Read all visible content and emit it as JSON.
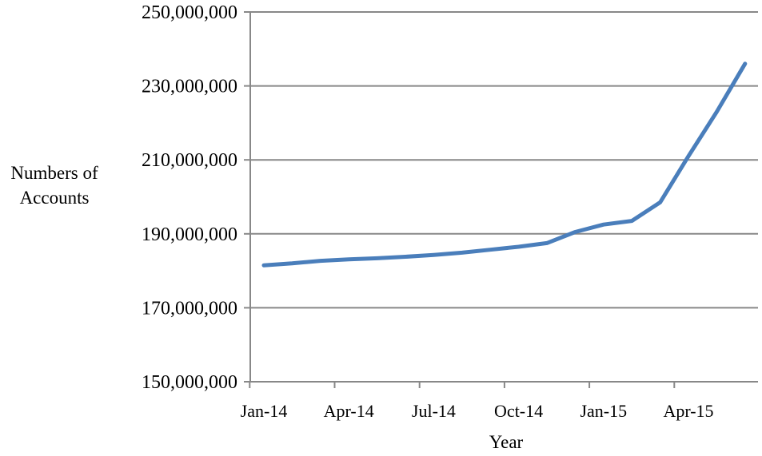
{
  "chart_data": {
    "type": "line",
    "title": "",
    "xlabel": "Year",
    "ylabel": [
      "Numbers of",
      "Accounts"
    ],
    "ylim": [
      150000000,
      250000000
    ],
    "yticks": [
      {
        "value": 150000000,
        "label": "150,000,000"
      },
      {
        "value": 170000000,
        "label": "170,000,000"
      },
      {
        "value": 190000000,
        "label": "190,000,000"
      },
      {
        "value": 210000000,
        "label": "210,000,000"
      },
      {
        "value": 230000000,
        "label": "230,000,000"
      },
      {
        "value": 250000000,
        "label": "250,000,000"
      }
    ],
    "xticks": [
      {
        "x": "2014-01",
        "label": "Jan-14"
      },
      {
        "x": "2014-04",
        "label": "Apr-14"
      },
      {
        "x": "2014-07",
        "label": "Jul-14"
      },
      {
        "x": "2014-10",
        "label": "Oct-14"
      },
      {
        "x": "2015-01",
        "label": "Jan-15"
      },
      {
        "x": "2015-04",
        "label": "Apr-15"
      }
    ],
    "x": [
      "2014-01",
      "2014-02",
      "2014-03",
      "2014-04",
      "2014-05",
      "2014-06",
      "2014-07",
      "2014-08",
      "2014-09",
      "2014-10",
      "2014-11",
      "2014-12",
      "2015-01",
      "2015-02",
      "2015-03",
      "2015-04",
      "2015-05",
      "2015-06"
    ],
    "series": [
      {
        "values": [
          181500000,
          182000000,
          182700000,
          183100000,
          183400000,
          183800000,
          184300000,
          184900000,
          185700000,
          186500000,
          187500000,
          190500000,
          192500000,
          193500000,
          198500000,
          211000000,
          223000000,
          236000000
        ]
      }
    ],
    "grid": true,
    "colors": {
      "line": "#4a7ebb",
      "grid": "#888888",
      "axis": "#888888"
    }
  }
}
